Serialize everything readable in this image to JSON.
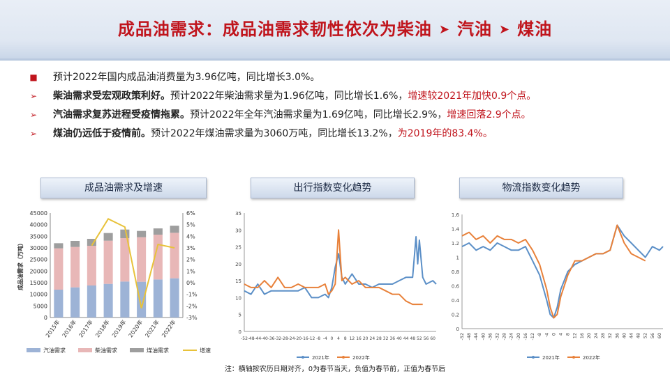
{
  "header": {
    "title_main": "成品油需求：成品油需求韧性依次为柴油",
    "sep1": "➤",
    "title_p2": "汽油",
    "sep2": "➤",
    "title_p3": "煤油"
  },
  "bullets": [
    {
      "marker": "■",
      "bold": "",
      "normal": "预计2022年国内成品油消费量为3.96亿吨，同比增长3.0%。",
      "red": ""
    },
    {
      "marker": "➢",
      "bold": "柴油需求受宏观政策利好。",
      "normal": "预计2022年柴油需求量为1.96亿吨，同比增长1.6%，",
      "red": "增速较2021年加快0.9个点。"
    },
    {
      "marker": "➢",
      "bold": "汽油需求复苏进程受疫情拖累。",
      "normal": "预计2022年全年汽油需求量为1.69亿吨，同比增长2.9%，",
      "red": "增速回落2.9个点。"
    },
    {
      "marker": "➢",
      "bold": "煤油仍远低于疫情前。",
      "normal": "预计2022年煤油需求量为3060万吨，同比增长13.2%，",
      "red": "为2019年的83.4%。"
    }
  ],
  "panels": {
    "p1": "成品油需求及增速",
    "p2": "出行指数变化趋势",
    "p3": "物流指数变化趋势"
  },
  "note": "注：横轴按农历日期对齐，0为春节当天，负值为春节前，正值为春节后",
  "colors": {
    "title_red": "#c0141c",
    "gasoline": "#9db3d6",
    "diesel": "#e8b7b7",
    "jet": "#9e9e9e",
    "growth": "#e8c23a",
    "series2021": "#5b8fc7",
    "series2022": "#e8813a"
  },
  "chart_data": [
    {
      "type": "bar",
      "stacked": true,
      "title": "",
      "categories": [
        "2015年",
        "2016年",
        "2017年",
        "2018年",
        "2019年",
        "2020年",
        "2021年",
        "2022年"
      ],
      "ylabel": "成品油需求（万吨）",
      "ylim": [
        0,
        45000
      ],
      "yticks": [
        "0",
        "5000",
        "10000",
        "15000",
        "20000",
        "25000",
        "30000",
        "35000",
        "40000",
        "45000"
      ],
      "y2lim": [
        -3,
        6
      ],
      "y2ticks": [
        "-3%",
        "-2%",
        "-1%",
        "0%",
        "1%",
        "2%",
        "3%",
        "4%",
        "5%",
        "6%"
      ],
      "series": [
        {
          "name": "汽油需求",
          "values": [
            12000,
            13000,
            13800,
            14500,
            15500,
            15400,
            16400,
            16900
          ]
        },
        {
          "name": "柴油需求",
          "values": [
            17800,
            17400,
            17100,
            18600,
            18700,
            19200,
            19300,
            19600
          ]
        },
        {
          "name": "煤油需求",
          "values": [
            2200,
            2600,
            3000,
            3300,
            3700,
            2700,
            2700,
            3060
          ]
        },
        {
          "name": "增速",
          "axis": "right",
          "values": [
            null,
            null,
            3.2,
            5.5,
            4.8,
            -2.2,
            3.3,
            3.0
          ]
        }
      ]
    },
    {
      "type": "line",
      "title": "",
      "ylim": [
        0,
        35
      ],
      "yticks": [
        "0",
        "5",
        "10",
        "15",
        "20",
        "25",
        "30",
        "35"
      ],
      "xlim": [
        -52,
        62
      ],
      "xticks": [
        "-52",
        "-48",
        "-44",
        "-40",
        "-36",
        "-32",
        "-28",
        "-24",
        "-20",
        "-16",
        "-12",
        "-8",
        "-4",
        "0",
        "4",
        "8",
        "12",
        "16",
        "20",
        "24",
        "28",
        "32",
        "36",
        "40",
        "44",
        "48",
        "52",
        "56",
        "60"
      ],
      "series": [
        {
          "name": "2021年",
          "x": [
            -52,
            -48,
            -44,
            -40,
            -36,
            -32,
            -28,
            -24,
            -20,
            -16,
            -12,
            -8,
            -4,
            -2,
            0,
            2,
            4,
            6,
            8,
            12,
            16,
            20,
            24,
            28,
            32,
            36,
            40,
            44,
            48,
            50,
            51,
            52,
            54,
            56,
            60,
            62
          ],
          "y": [
            12,
            11,
            14,
            11,
            12,
            12,
            12,
            12,
            12,
            13,
            10,
            10,
            11,
            10,
            13,
            19,
            23,
            16,
            14,
            17,
            14,
            14,
            13,
            14,
            14,
            14,
            15,
            16,
            16,
            28,
            20,
            27,
            16,
            14,
            15,
            14
          ]
        },
        {
          "name": "2022年",
          "x": [
            -52,
            -48,
            -44,
            -40,
            -36,
            -32,
            -28,
            -24,
            -20,
            -16,
            -12,
            -8,
            -4,
            -2,
            0,
            2,
            4,
            6,
            8,
            12,
            16,
            20,
            24,
            28,
            32,
            36,
            40,
            44,
            48,
            52,
            54
          ],
          "y": [
            14,
            13,
            13,
            15,
            13,
            16,
            13,
            13,
            14,
            13,
            13,
            13,
            14,
            11,
            12,
            14,
            30,
            15,
            16,
            14,
            15,
            13,
            13,
            13,
            12,
            11,
            11,
            9,
            8,
            8,
            8
          ]
        }
      ]
    },
    {
      "type": "line",
      "title": "",
      "ylim": [
        0,
        1.6
      ],
      "yticks": [
        "0",
        "0.2",
        "0.4",
        "0.6",
        "0.8",
        "1",
        "1.2",
        "1.4",
        "1.6"
      ],
      "xlim": [
        -52,
        62
      ],
      "xticks": [
        "-52",
        "-48",
        "-44",
        "-40",
        "-36",
        "-32",
        "-28",
        "-24",
        "-20",
        "-16",
        "-12",
        "-8",
        "-4",
        "0",
        "4",
        "8",
        "12",
        "16",
        "20",
        "24",
        "28",
        "32",
        "36",
        "40",
        "44",
        "48",
        "52",
        "56",
        "60"
      ],
      "series": [
        {
          "name": "2021年",
          "x": [
            -52,
            -48,
            -44,
            -40,
            -36,
            -32,
            -28,
            -24,
            -20,
            -16,
            -12,
            -8,
            -4,
            -2,
            0,
            2,
            4,
            8,
            12,
            16,
            20,
            24,
            28,
            32,
            36,
            40,
            44,
            48,
            52,
            56,
            60,
            62
          ],
          "y": [
            1.15,
            1.2,
            1.1,
            1.15,
            1.1,
            1.2,
            1.15,
            1.1,
            1.1,
            1.15,
            0.95,
            0.75,
            0.4,
            0.2,
            0.15,
            0.3,
            0.55,
            0.8,
            0.9,
            0.95,
            1.0,
            1.05,
            1.05,
            1.1,
            1.45,
            1.3,
            1.2,
            1.1,
            1.0,
            1.15,
            1.1,
            1.15
          ]
        },
        {
          "name": "2022年",
          "x": [
            -52,
            -48,
            -44,
            -40,
            -36,
            -32,
            -28,
            -24,
            -20,
            -16,
            -12,
            -8,
            -4,
            -2,
            0,
            2,
            4,
            8,
            12,
            16,
            20,
            24,
            28,
            32,
            36,
            40,
            44,
            48,
            52
          ],
          "y": [
            1.3,
            1.35,
            1.25,
            1.3,
            1.2,
            1.3,
            1.25,
            1.25,
            1.2,
            1.25,
            1.1,
            0.9,
            0.55,
            0.3,
            0.15,
            0.2,
            0.45,
            0.75,
            0.95,
            0.95,
            1.0,
            1.05,
            1.05,
            1.1,
            1.45,
            1.2,
            1.05,
            1.0,
            0.95
          ]
        }
      ]
    }
  ]
}
